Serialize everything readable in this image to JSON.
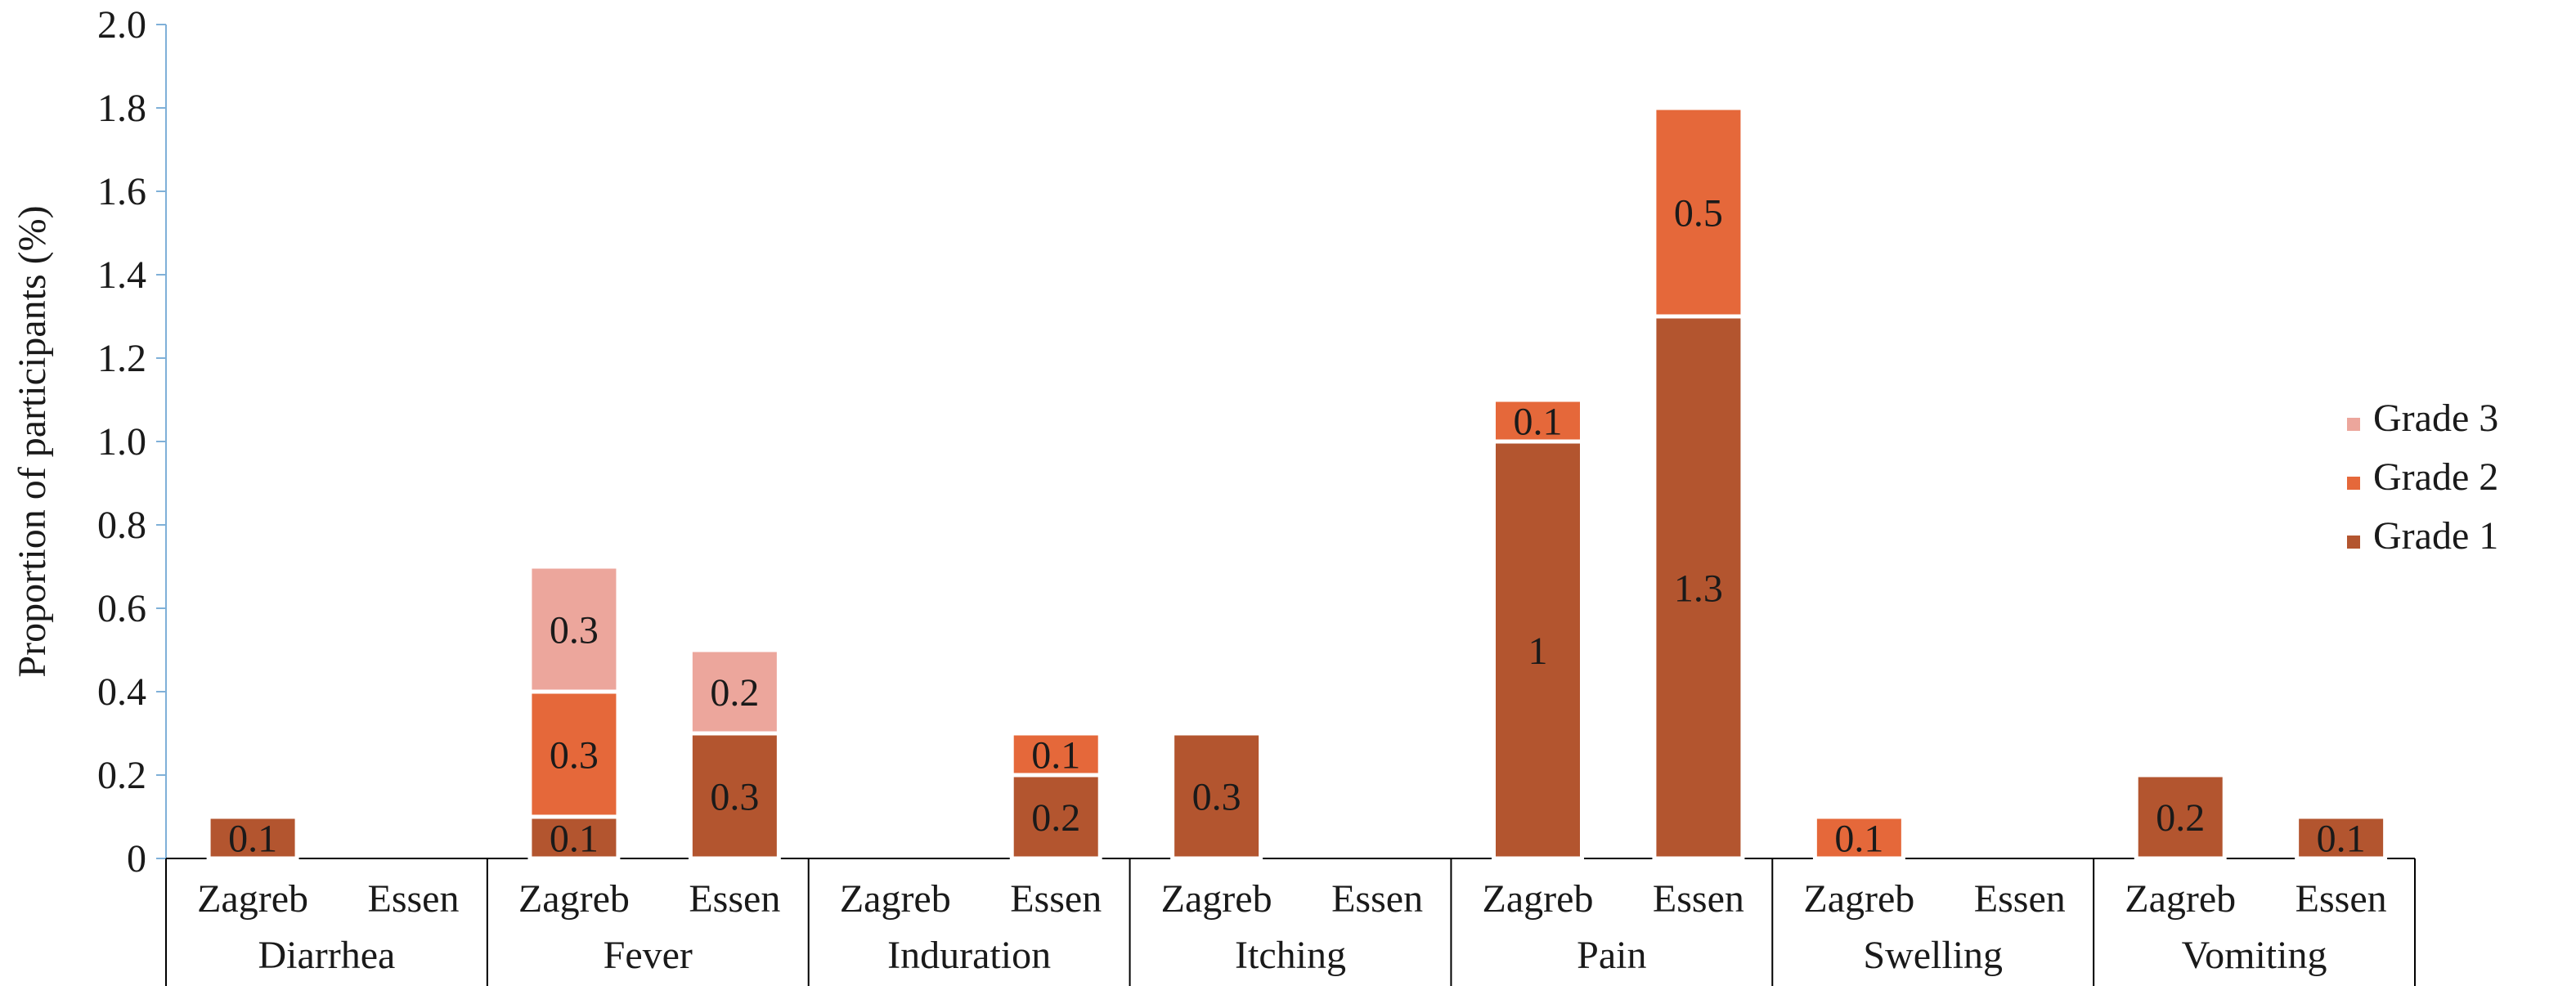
{
  "chart_data": {
    "type": "bar",
    "stacked": true,
    "ylabel": "Proportion of participants (%)",
    "ylim": [
      0,
      2.0
    ],
    "yticks": [
      "0",
      "0.2",
      "0.4",
      "0.6",
      "0.8",
      "1.0",
      "1.2",
      "1.4",
      "1.6",
      "1.8",
      "2.0"
    ],
    "groups": [
      {
        "name": "Diarrhea",
        "bars": [
          {
            "label": "Zagreb",
            "grade1": 0.1,
            "grade2": 0,
            "grade3": 0
          },
          {
            "label": "Essen",
            "grade1": 0,
            "grade2": 0,
            "grade3": 0
          }
        ]
      },
      {
        "name": "Fever",
        "bars": [
          {
            "label": "Zagreb",
            "grade1": 0.1,
            "grade2": 0.3,
            "grade3": 0.3
          },
          {
            "label": "Essen",
            "grade1": 0.3,
            "grade2": 0,
            "grade3": 0.2
          }
        ]
      },
      {
        "name": "Induration",
        "bars": [
          {
            "label": "Zagreb",
            "grade1": 0,
            "grade2": 0,
            "grade3": 0
          },
          {
            "label": "Essen",
            "grade1": 0.2,
            "grade2": 0.1,
            "grade3": 0
          }
        ]
      },
      {
        "name": "Itching",
        "bars": [
          {
            "label": "Zagreb",
            "grade1": 0.3,
            "grade2": 0,
            "grade3": 0
          },
          {
            "label": "Essen",
            "grade1": 0,
            "grade2": 0,
            "grade3": 0
          }
        ]
      },
      {
        "name": "Pain",
        "bars": [
          {
            "label": "Zagreb",
            "grade1": 1,
            "grade2": 0.1,
            "grade3": 0
          },
          {
            "label": "Essen",
            "grade1": 1.3,
            "grade2": 0.5,
            "grade3": 0
          }
        ]
      },
      {
        "name": "Swelling",
        "bars": [
          {
            "label": "Zagreb",
            "grade1": 0,
            "grade2": 0.1,
            "grade3": 0
          },
          {
            "label": "Essen",
            "grade1": 0,
            "grade2": 0,
            "grade3": 0
          }
        ]
      },
      {
        "name": "Vomiting",
        "bars": [
          {
            "label": "Zagreb",
            "grade1": 0.2,
            "grade2": 0,
            "grade3": 0
          },
          {
            "label": "Essen",
            "grade1": 0.1,
            "grade2": 0,
            "grade3": 0
          }
        ]
      }
    ],
    "series": [
      {
        "key": "grade3",
        "name": "Grade 3",
        "color": "#ECA69C"
      },
      {
        "key": "grade2",
        "name": "Grade 2",
        "color": "#E5683A"
      },
      {
        "key": "grade1",
        "name": "Grade 1",
        "color": "#B3552F"
      }
    ],
    "legend_position": "right",
    "grid": false
  }
}
